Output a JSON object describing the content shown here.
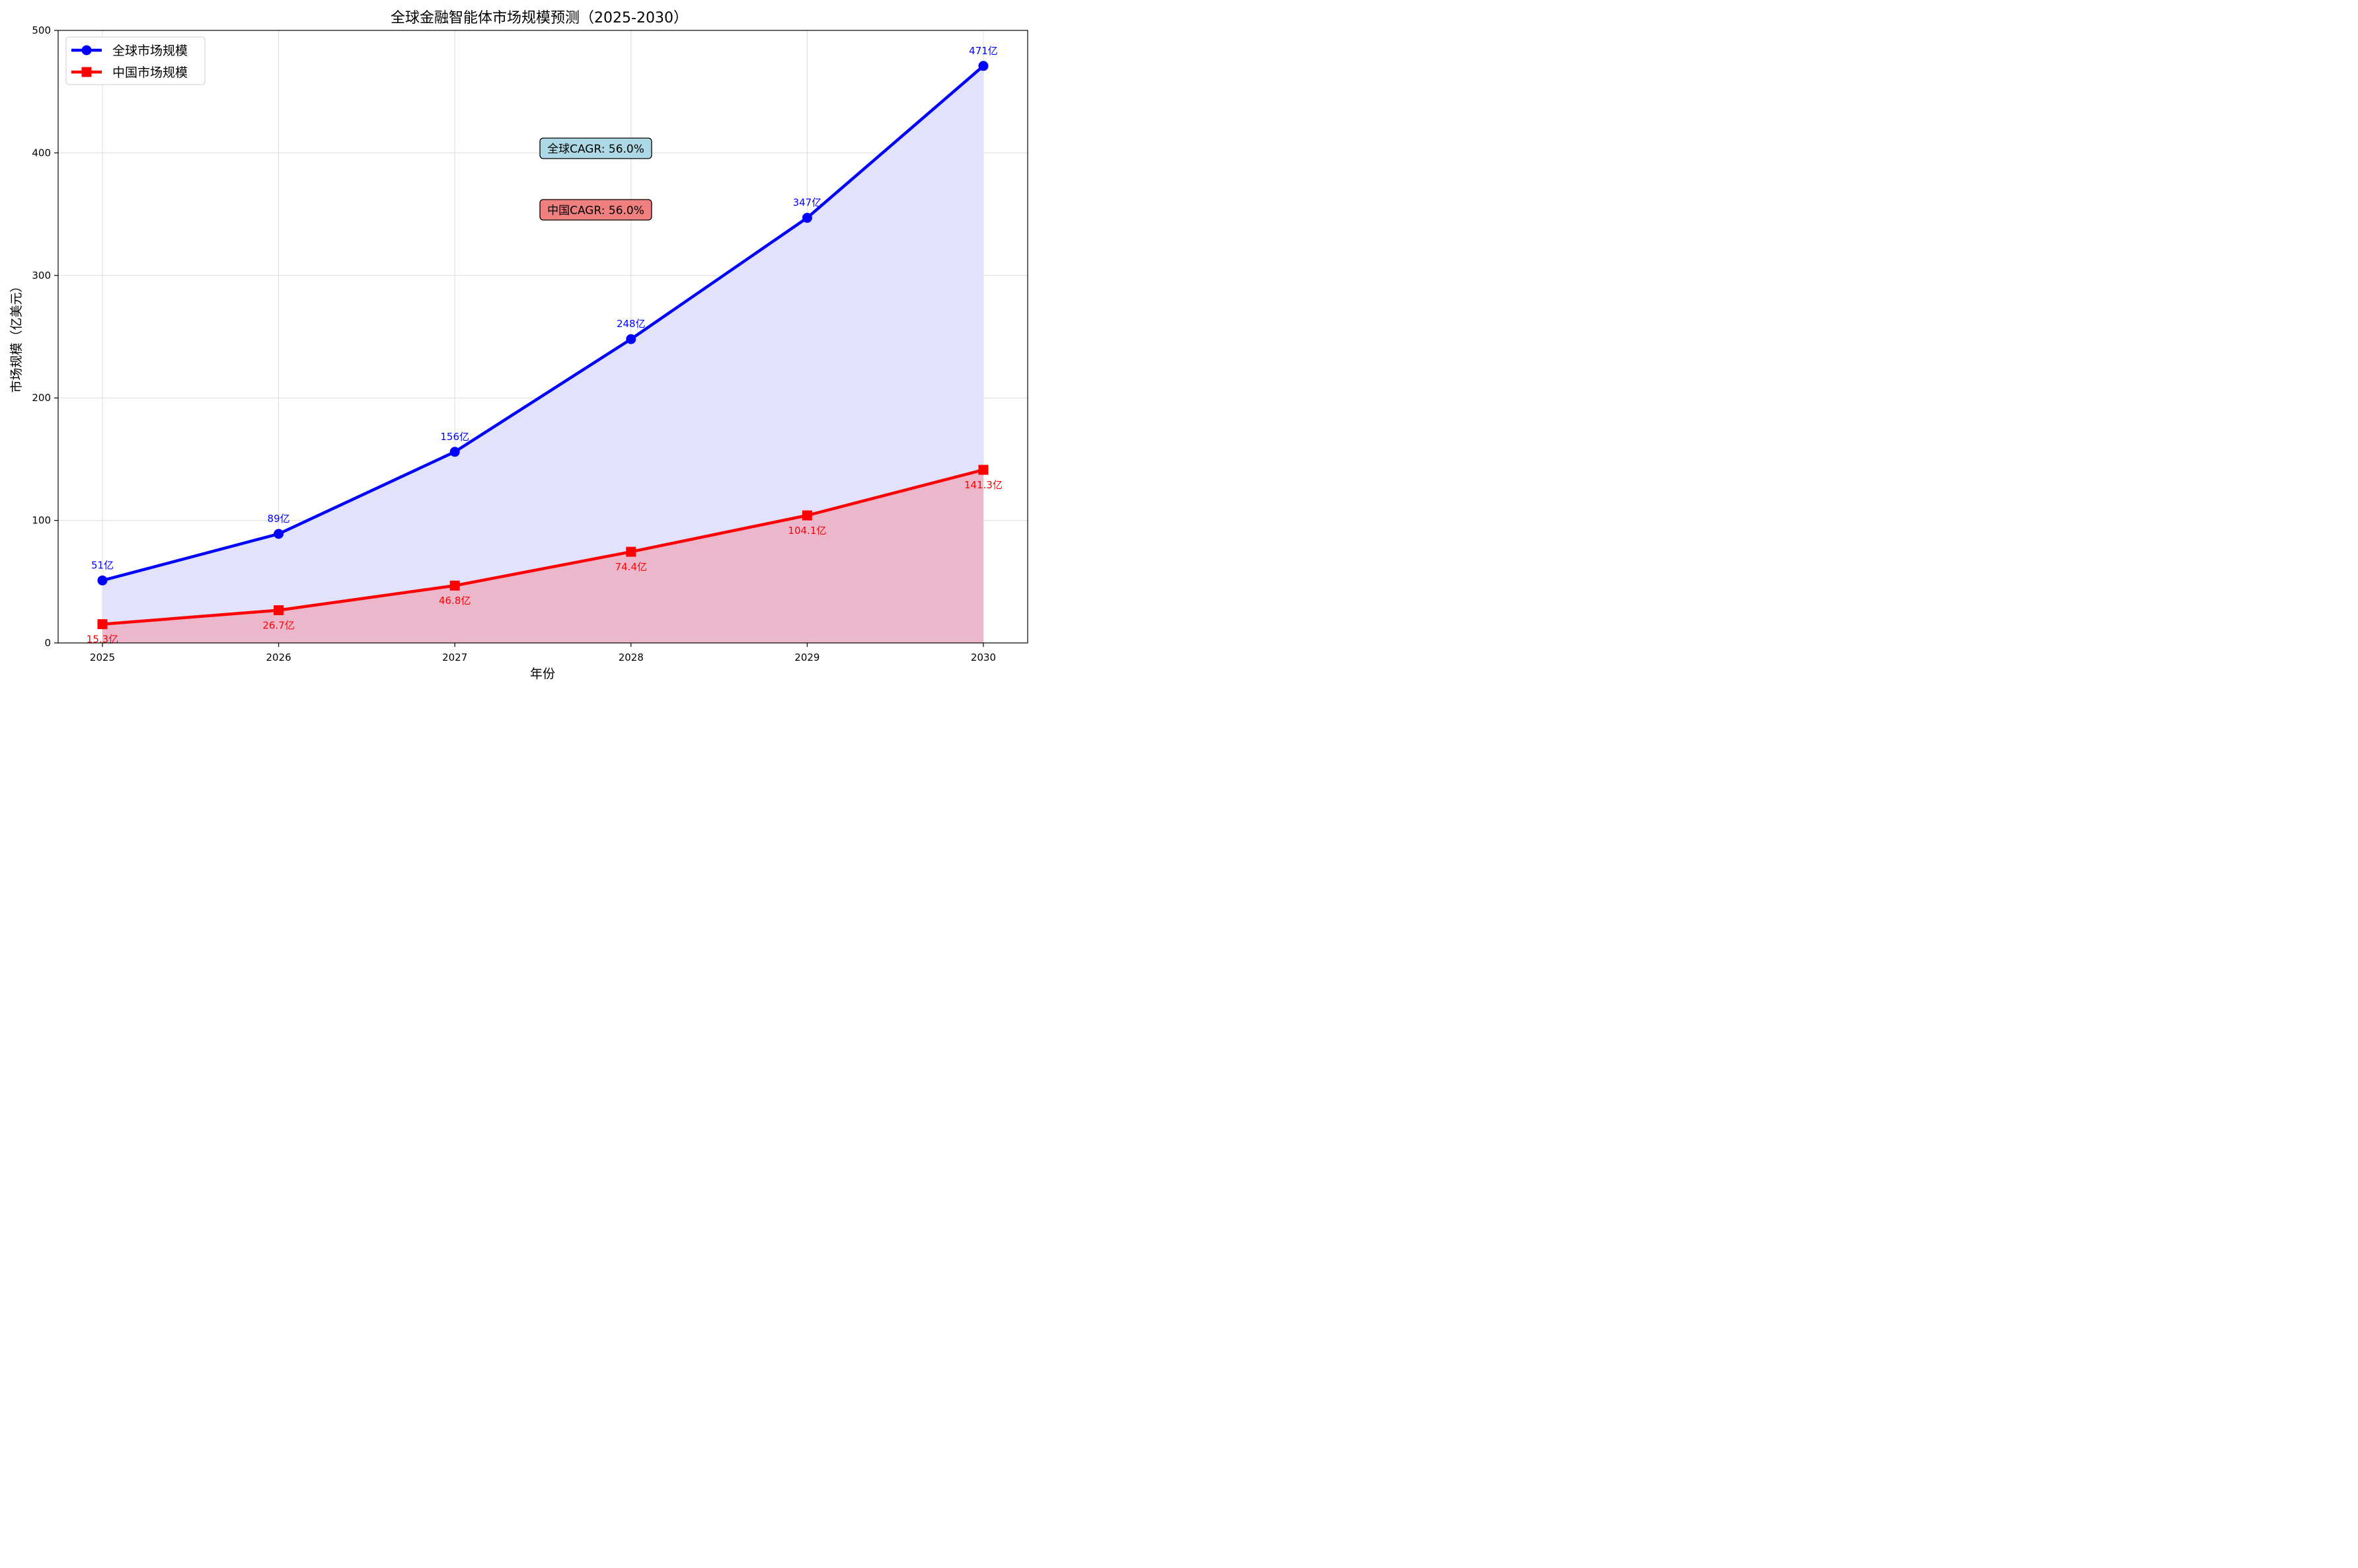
{
  "chart_data": {
    "type": "line",
    "title": "全球金融智能体市场规模预测（2025-2030）",
    "xlabel": "年份",
    "ylabel": "市场规模（亿美元）",
    "categories": [
      "2025",
      "2026",
      "2027",
      "2028",
      "2029",
      "2030"
    ],
    "ylim": [
      0,
      500
    ],
    "yticks": [
      0,
      100,
      200,
      300,
      400,
      500
    ],
    "grid": true,
    "legend_position": "top-left",
    "series": [
      {
        "name": "全球市场规模",
        "values": [
          51,
          89,
          156,
          248,
          347,
          471
        ],
        "labels": [
          "51亿",
          "89亿",
          "156亿",
          "248亿",
          "347亿",
          "471亿"
        ],
        "color": "#0000ff",
        "fill_color": "#e2e2fc",
        "marker": "circle",
        "label_position": "above"
      },
      {
        "name": "中国市场规模",
        "values": [
          15.3,
          26.7,
          46.8,
          74.4,
          104.1,
          141.3
        ],
        "labels": [
          "15.3亿",
          "26.7亿",
          "46.8亿",
          "74.4亿",
          "104.1亿",
          "141.3亿"
        ],
        "color": "#ff0000",
        "fill_color": "#ecb6cb",
        "marker": "square",
        "label_position": "below"
      }
    ],
    "annotations": [
      {
        "text": "全球CAGR: 56.0%",
        "bg": "#add8e6"
      },
      {
        "text": "中国CAGR: 56.0%",
        "bg": "#f08080"
      }
    ]
  }
}
